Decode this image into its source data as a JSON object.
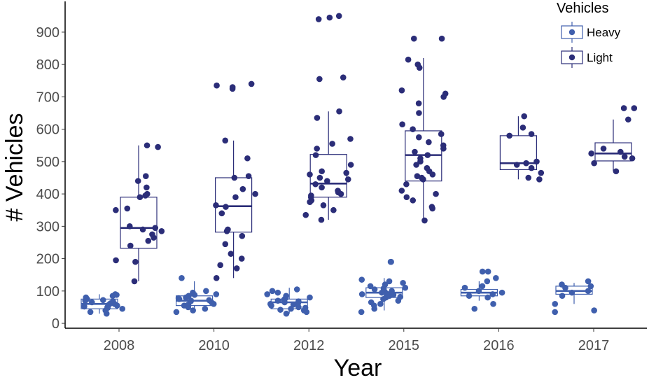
{
  "chart_data": {
    "type": "boxplot-with-jitter",
    "xlabel": "Year",
    "ylabel": "# Vehicles",
    "categories": [
      "2008",
      "2010",
      "2012",
      "2015",
      "2016",
      "2017"
    ],
    "ylim": [
      -15,
      995
    ],
    "yticks": [
      0,
      100,
      200,
      300,
      400,
      500,
      600,
      700,
      800,
      900
    ],
    "grid": false,
    "legend": {
      "title": "Vehicles",
      "position": "top-right"
    },
    "colors": {
      "Heavy": "#3f5fad",
      "Light": "#2b2d78",
      "axis": "#000000",
      "tick_text": "#4d4d4d"
    },
    "series": [
      {
        "name": "Heavy",
        "boxes": [
          {
            "category": "2008",
            "min": 30,
            "q1": 45,
            "median": 60,
            "q3": 75,
            "max": 90
          },
          {
            "category": "2010",
            "min": 35,
            "q1": 55,
            "median": 70,
            "q3": 85,
            "max": 130
          },
          {
            "category": "2012",
            "min": 30,
            "q1": 45,
            "median": 65,
            "q3": 75,
            "max": 110
          },
          {
            "category": "2015",
            "min": 40,
            "q1": 80,
            "median": 95,
            "q3": 110,
            "max": 140
          },
          {
            "category": "2016",
            "min": 70,
            "q1": 85,
            "median": 95,
            "q3": 105,
            "max": 130
          },
          {
            "category": "2017",
            "min": 60,
            "q1": 90,
            "median": 100,
            "q3": 115,
            "max": 125
          }
        ],
        "points": [
          {
            "category": "2008",
            "values": [
              30,
              35,
              40,
              45,
              48,
              50,
              52,
              55,
              58,
              60,
              62,
              65,
              68,
              70,
              72,
              75,
              80,
              85,
              88,
              90
            ]
          },
          {
            "category": "2010",
            "values": [
              35,
              40,
              45,
              50,
              55,
              58,
              60,
              65,
              68,
              70,
              72,
              75,
              78,
              80,
              85,
              88,
              90,
              95,
              100,
              140
            ]
          },
          {
            "category": "2012",
            "values": [
              30,
              35,
              40,
              42,
              45,
              48,
              50,
              55,
              58,
              60,
              62,
              65,
              68,
              70,
              72,
              75,
              78,
              80,
              85,
              90,
              95,
              100,
              105
            ]
          },
          {
            "category": "2015",
            "values": [
              35,
              45,
              55,
              60,
              65,
              70,
              75,
              80,
              82,
              85,
              88,
              90,
              92,
              95,
              98,
              100,
              105,
              108,
              110,
              115,
              120,
              125,
              130,
              135,
              190,
              190
            ]
          },
          {
            "category": "2016",
            "values": [
              45,
              60,
              80,
              85,
              90,
              95,
              100,
              110,
              115,
              130,
              140,
              160,
              160
            ]
          },
          {
            "category": "2017",
            "values": [
              35,
              40,
              60,
              85,
              95,
              100,
              110,
              115,
              120,
              130
            ]
          }
        ]
      },
      {
        "name": "Light",
        "boxes": [
          {
            "category": "2008",
            "min": 130,
            "q1": 232,
            "median": 295,
            "q3": 390,
            "max": 550
          },
          {
            "category": "2010",
            "min": 140,
            "q1": 282,
            "median": 362,
            "q3": 450,
            "max": 565
          },
          {
            "category": "2012",
            "min": 320,
            "q1": 390,
            "median": 432,
            "q3": 522,
            "max": 655
          },
          {
            "category": "2015",
            "min": 318,
            "q1": 440,
            "median": 520,
            "q3": 595,
            "max": 820
          },
          {
            "category": "2016",
            "min": 445,
            "q1": 475,
            "median": 495,
            "q3": 580,
            "max": 640
          },
          {
            "category": "2017",
            "min": 470,
            "q1": 502,
            "median": 525,
            "q3": 558,
            "max": 630
          }
        ],
        "points": [
          {
            "category": "2008",
            "values": [
              130,
              190,
              195,
              240,
              255,
              265,
              275,
              285,
              290,
              295,
              300,
              350,
              355,
              390,
              395,
              400,
              420,
              440,
              455,
              545,
              550
            ]
          },
          {
            "category": "2010",
            "values": [
              140,
              170,
              180,
              200,
              215,
              245,
              270,
              285,
              290,
              340,
              360,
              365,
              390,
              400,
              415,
              450,
              455,
              510,
              565,
              725,
              730,
              735,
              740
            ]
          },
          {
            "category": "2012",
            "values": [
              320,
              335,
              350,
              365,
              375,
              380,
              390,
              395,
              400,
              405,
              410,
              420,
              430,
              440,
              445,
              450,
              460,
              465,
              470,
              490,
              520,
              540,
              555,
              570,
              635,
              655,
              755,
              760,
              940,
              945,
              950
            ]
          },
          {
            "category": "2015",
            "values": [
              318,
              355,
              360,
              380,
              390,
              400,
              410,
              430,
              445,
              450,
              455,
              460,
              470,
              480,
              490,
              500,
              510,
              520,
              530,
              540,
              550,
              560,
              575,
              585,
              600,
              615,
              650,
              680,
              700,
              710,
              720,
              790,
              800,
              815,
              880,
              880
            ]
          },
          {
            "category": "2016",
            "values": [
              445,
              450,
              465,
              480,
              490,
              495,
              500,
              580,
              585,
              605,
              640
            ]
          },
          {
            "category": "2017",
            "values": [
              470,
              495,
              510,
              515,
              525,
              530,
              540,
              630,
              665,
              665
            ]
          }
        ]
      }
    ]
  }
}
